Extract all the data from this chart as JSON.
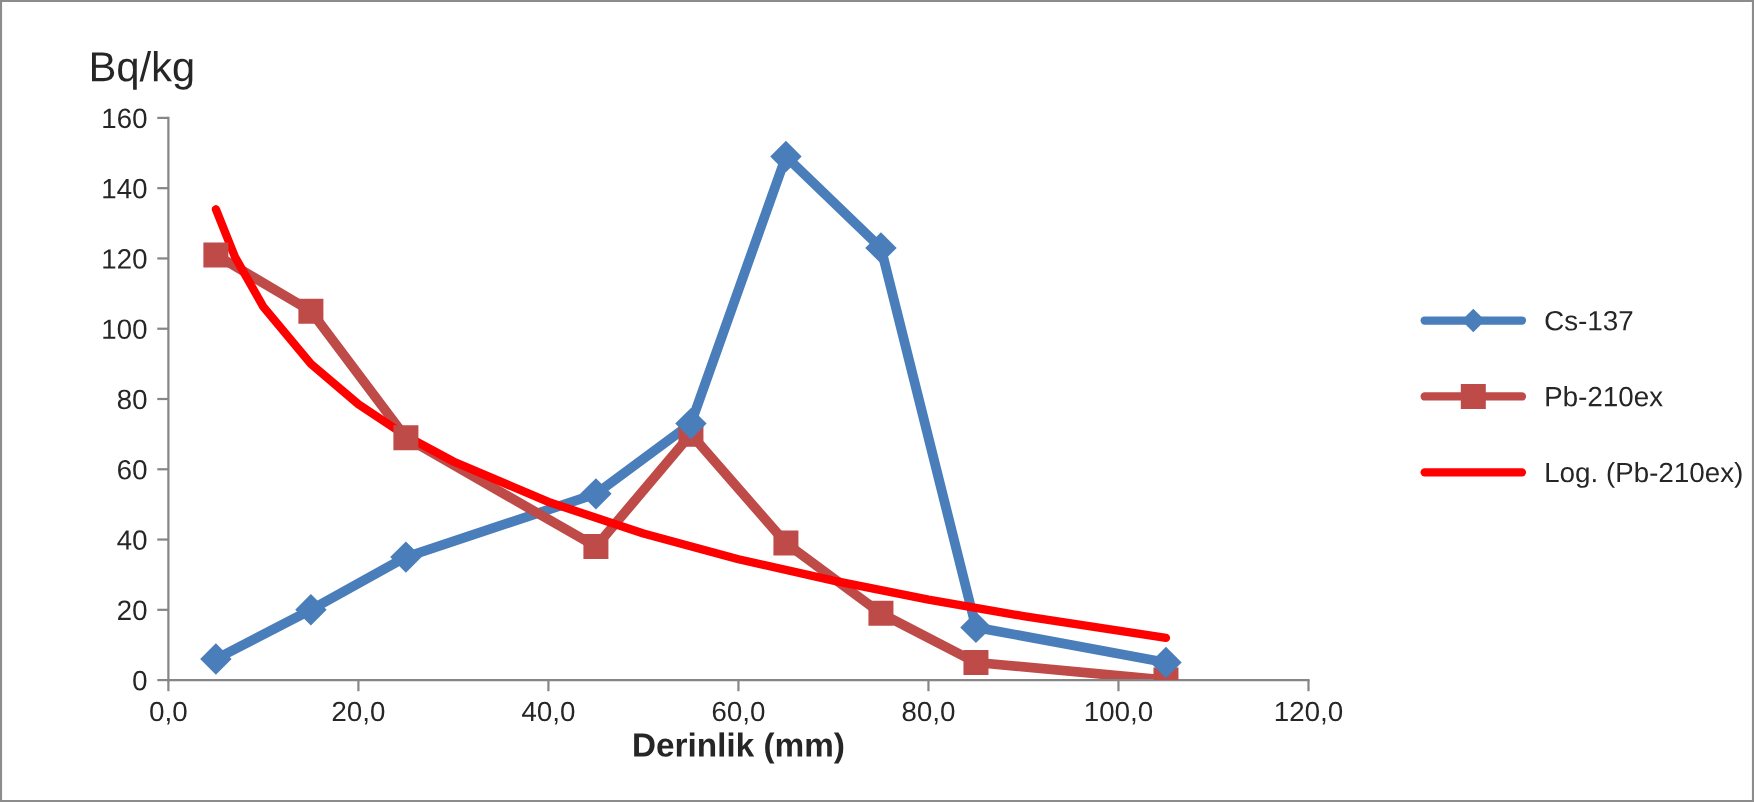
{
  "chart_data": {
    "type": "line",
    "xlabel": "Derinlik (mm)",
    "ylabel": "Bq/kg",
    "xlim": [
      0,
      120
    ],
    "xticks": [
      {
        "value": 0,
        "label": "0,0"
      },
      {
        "value": 20,
        "label": "20,0"
      },
      {
        "value": 40,
        "label": "40,0"
      },
      {
        "value": 60,
        "label": "60,0"
      },
      {
        "value": 80,
        "label": "80,0"
      },
      {
        "value": 100,
        "label": "100,0"
      },
      {
        "value": 120,
        "label": "120,0"
      }
    ],
    "ylim": [
      0,
      160
    ],
    "yticks": [
      0,
      20,
      40,
      60,
      80,
      100,
      120,
      140,
      160
    ],
    "grid": false,
    "legend": "right",
    "series": [
      {
        "name": "Cs-137",
        "color": "#4a7ebb",
        "marker": "diamond",
        "x": [
          5,
          15,
          25,
          45,
          55,
          65,
          75,
          85,
          105
        ],
        "values": [
          6,
          20,
          35,
          53,
          73,
          149,
          123,
          15,
          5
        ]
      },
      {
        "name": "Pb-210ex",
        "color": "#be4b48",
        "marker": "square",
        "x": [
          5,
          15,
          25,
          45,
          55,
          65,
          75,
          85,
          105
        ],
        "values": [
          121,
          105,
          69,
          38,
          70,
          39,
          19,
          5,
          0
        ]
      },
      {
        "name": "Log. (Pb-210ex)",
        "color": "#ff0000",
        "marker": "none",
        "x": [
          5,
          7,
          10,
          15,
          20,
          25,
          30,
          40,
          50,
          60,
          70,
          80,
          90,
          105
        ],
        "values": [
          134,
          120.5,
          106.2,
          90,
          78.5,
          69.5,
          62.2,
          50.7,
          41.7,
          34.4,
          28.3,
          22.9,
          18.2,
          12
        ]
      }
    ]
  }
}
